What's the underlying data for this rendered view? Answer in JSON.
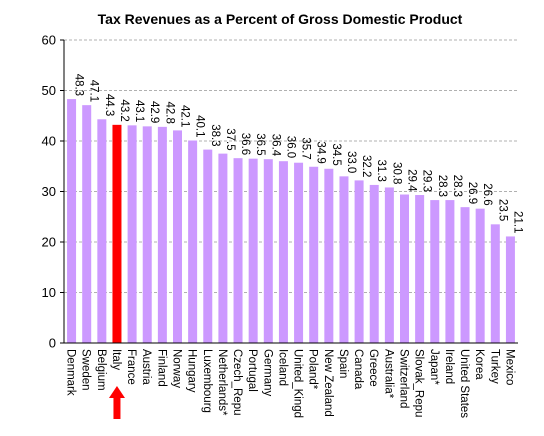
{
  "chart_data": {
    "type": "bar",
    "title": "Tax Revenues as a Percent of Gross Domestic Product",
    "xlabel": "",
    "ylabel": "",
    "ylim": [
      0,
      60
    ],
    "yticks": [
      0,
      10,
      20,
      30,
      40,
      50,
      60
    ],
    "grid": true,
    "categories": [
      "Denmark",
      "Sweden",
      "Belgium",
      "Italy",
      "France",
      "Austria",
      "Finland",
      "Norway",
      "Hungary",
      "Luxembourg",
      "Netherlands*",
      "Czech_Repu",
      "Portugal",
      "Germany",
      "Iceland",
      "United_Kingd",
      "Poland*",
      "New Zealand",
      "Spain",
      "Canada",
      "Greece",
      "Australia*",
      "Switzerland",
      "Slovak_Repu",
      "Japan*",
      "Ireland",
      "United States",
      "Korea",
      "Turkey",
      "Mexico"
    ],
    "values": [
      48.3,
      47.1,
      44.3,
      43.2,
      43.1,
      42.9,
      42.8,
      42.1,
      40.1,
      38.3,
      37.5,
      36.6,
      36.5,
      36.4,
      36.0,
      35.7,
      34.9,
      34.5,
      33.0,
      32.2,
      31.3,
      30.8,
      29.4,
      29.3,
      28.3,
      28.3,
      26.9,
      26.6,
      23.5,
      21.1
    ],
    "labels": [
      "48.3",
      "47.1",
      "44.3",
      "43.2",
      "43.1",
      "42.9",
      "42.8",
      "42.1",
      "40.1",
      "38.3",
      "37.5",
      "36.6",
      "36.5",
      "36.4",
      "36.0",
      "35.7",
      "34.9",
      "34.5",
      "33.0",
      "32.2",
      "31.3",
      "30.8",
      "29.4",
      "29.3",
      "28.3",
      "28.3",
      "26.9",
      "26.6",
      "23.5",
      "21.1"
    ],
    "highlight_category": "Italy",
    "colors": {
      "bar": "#cc99ff",
      "highlight_bar": "#ff0000",
      "arrow": "#ff0000",
      "grid": "#b0b0b0"
    }
  }
}
